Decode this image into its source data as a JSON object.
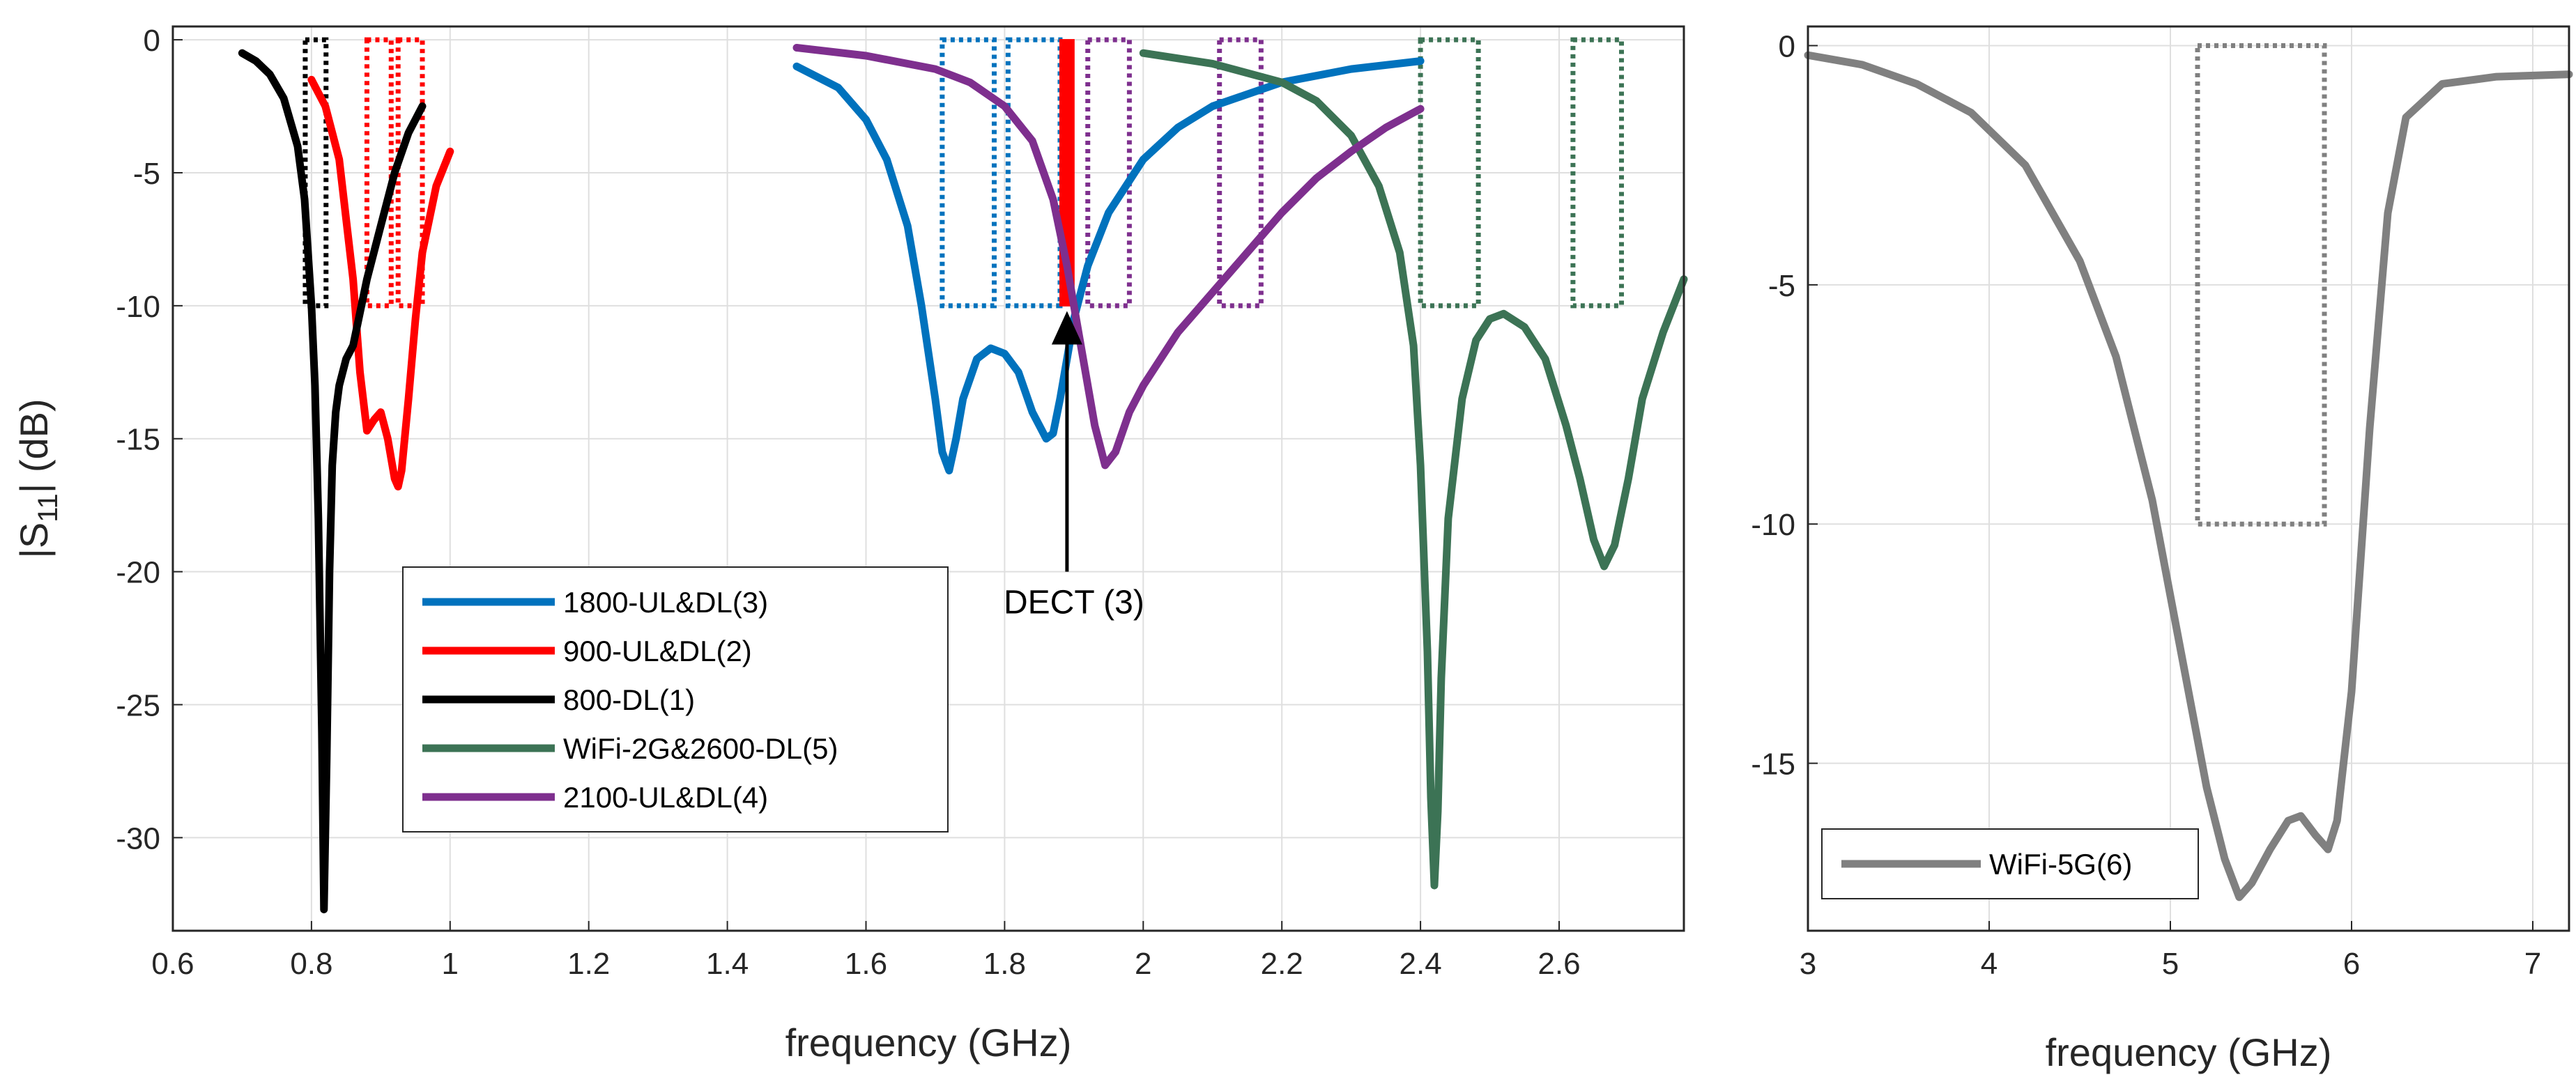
{
  "chart_data": [
    {
      "type": "line",
      "xlabel": "frequency (GHz)",
      "ylabel": "|S11| (dB)",
      "ylabel_main": "|S",
      "ylabel_sub": "11",
      "ylabel_tail": "| (dB)",
      "xlim": [
        0.6,
        2.78
      ],
      "ylim": [
        -33.5,
        0.5
      ],
      "xticks": [
        0.6,
        0.8,
        1,
        1.2,
        1.4,
        1.6,
        1.8,
        2,
        2.2,
        2.4,
        2.6
      ],
      "xtick_labels": [
        "0.6",
        "0.8",
        "1",
        "1.2",
        "1.4",
        "1.6",
        "1.8",
        "2",
        "2.2",
        "2.4",
        "2.6"
      ],
      "yticks": [
        0,
        -5,
        -10,
        -15,
        -20,
        -25,
        -30
      ],
      "ytick_labels": [
        "0",
        "-5",
        "-10",
        "-15",
        "-20",
        "-25",
        "-30"
      ],
      "grid": true,
      "legend_position": "lower-left",
      "series": [
        {
          "name": "1800-UL&DL(3)",
          "color": "#0072BD",
          "x": [
            1.5,
            1.56,
            1.6,
            1.63,
            1.66,
            1.68,
            1.7,
            1.71,
            1.72,
            1.73,
            1.74,
            1.76,
            1.78,
            1.8,
            1.82,
            1.84,
            1.86,
            1.87,
            1.88,
            1.89,
            1.9,
            1.92,
            1.95,
            2.0,
            2.05,
            2.1,
            2.2,
            2.3,
            2.4
          ],
          "y": [
            -1.0,
            -1.8,
            -3.0,
            -4.5,
            -7.0,
            -10.0,
            -13.5,
            -15.5,
            -16.2,
            -15.0,
            -13.5,
            -12.0,
            -11.6,
            -11.8,
            -12.5,
            -14.0,
            -15.0,
            -14.8,
            -13.5,
            -12.0,
            -10.5,
            -8.5,
            -6.5,
            -4.5,
            -3.3,
            -2.5,
            -1.6,
            -1.1,
            -0.8
          ]
        },
        {
          "name": "900-UL&DL(2)",
          "color": "#FF0000",
          "x": [
            0.8,
            0.82,
            0.84,
            0.86,
            0.87,
            0.88,
            0.89,
            0.9,
            0.91,
            0.92,
            0.925,
            0.93,
            0.94,
            0.95,
            0.96,
            0.98,
            1.0
          ],
          "y": [
            -1.5,
            -2.5,
            -4.5,
            -9.0,
            -12.5,
            -14.7,
            -14.3,
            -14.0,
            -15.0,
            -16.5,
            -16.8,
            -16.2,
            -13.5,
            -10.5,
            -8.0,
            -5.5,
            -4.2
          ]
        },
        {
          "name": "800-DL(1)",
          "color": "#000000",
          "x": [
            0.7,
            0.72,
            0.74,
            0.76,
            0.78,
            0.79,
            0.8,
            0.805,
            0.81,
            0.815,
            0.818,
            0.822,
            0.826,
            0.83,
            0.835,
            0.84,
            0.85,
            0.86,
            0.88,
            0.9,
            0.92,
            0.94,
            0.96
          ],
          "y": [
            -0.5,
            -0.8,
            -1.3,
            -2.2,
            -4.0,
            -6.0,
            -10.0,
            -13.0,
            -18.0,
            -26.0,
            -32.7,
            -27.0,
            -20.0,
            -16.0,
            -14.0,
            -13.0,
            -12.0,
            -11.5,
            -9.0,
            -7.0,
            -5.0,
            -3.5,
            -2.5
          ]
        },
        {
          "name": "WiFi-2G&2600-DL(5)",
          "color": "#3C7355",
          "x": [
            2.0,
            2.1,
            2.2,
            2.25,
            2.3,
            2.34,
            2.37,
            2.39,
            2.4,
            2.41,
            2.415,
            2.42,
            2.425,
            2.43,
            2.44,
            2.46,
            2.48,
            2.5,
            2.52,
            2.55,
            2.58,
            2.61,
            2.63,
            2.65,
            2.665,
            2.68,
            2.7,
            2.72,
            2.75,
            2.78
          ],
          "y": [
            -0.5,
            -0.9,
            -1.6,
            -2.3,
            -3.6,
            -5.5,
            -8.0,
            -11.5,
            -16.0,
            -23.0,
            -28.5,
            -31.8,
            -29.0,
            -24.0,
            -18.0,
            -13.5,
            -11.3,
            -10.5,
            -10.3,
            -10.8,
            -12.0,
            -14.5,
            -16.5,
            -18.8,
            -19.8,
            -19.0,
            -16.5,
            -13.5,
            -11.0,
            -9.0
          ]
        },
        {
          "name": "2100-UL&DL(4)",
          "color": "#7E2F8E",
          "x": [
            1.5,
            1.6,
            1.7,
            1.75,
            1.8,
            1.84,
            1.87,
            1.89,
            1.91,
            1.93,
            1.945,
            1.96,
            1.98,
            2.0,
            2.05,
            2.1,
            2.15,
            2.2,
            2.25,
            2.3,
            2.35,
            2.4
          ],
          "y": [
            -0.3,
            -0.6,
            -1.1,
            -1.6,
            -2.5,
            -3.8,
            -6.0,
            -8.5,
            -11.5,
            -14.5,
            -16.0,
            -15.5,
            -14.0,
            -13.0,
            -11.0,
            -9.5,
            -8.0,
            -6.5,
            -5.2,
            -4.2,
            -3.3,
            -2.6
          ]
        }
      ],
      "boxes": [
        {
          "x0": 0.791,
          "x1": 0.821,
          "y0": -10,
          "y1": 0,
          "color": "#000000"
        },
        {
          "x0": 0.88,
          "x1": 0.915,
          "y0": -10,
          "y1": 0,
          "color": "#FF0000"
        },
        {
          "x0": 0.925,
          "x1": 0.96,
          "y0": -10,
          "y1": 0,
          "color": "#FF0000"
        },
        {
          "x0": 1.71,
          "x1": 1.785,
          "y0": -10,
          "y1": 0,
          "color": "#0072BD"
        },
        {
          "x0": 1.805,
          "x1": 1.88,
          "y0": -10,
          "y1": 0,
          "color": "#0072BD"
        },
        {
          "x0": 1.92,
          "x1": 1.98,
          "y0": -10,
          "y1": 0,
          "color": "#7E2F8E"
        },
        {
          "x0": 2.11,
          "x1": 2.17,
          "y0": -10,
          "y1": 0,
          "color": "#7E2F8E"
        },
        {
          "x0": 2.4,
          "x1": 2.4835,
          "y0": -10,
          "y1": 0,
          "color": "#3C7355"
        },
        {
          "x0": 2.62,
          "x1": 2.69,
          "y0": -10,
          "y1": 0,
          "color": "#3C7355"
        }
      ],
      "dect_band": {
        "x0": 1.88,
        "x1": 1.9,
        "y0": -10,
        "y1": 0,
        "color": "#FF0000"
      },
      "annotation": {
        "text": "DECT (3)",
        "arrow_x": 1.89,
        "arrow_y_tip": -10.2,
        "arrow_y_tail": -20.0
      }
    },
    {
      "type": "line",
      "xlabel": "frequency (GHz)",
      "ylabel": "",
      "xlim": [
        3,
        7.2
      ],
      "ylim": [
        -18.5,
        0.4
      ],
      "xticks": [
        3,
        4,
        5,
        6,
        7
      ],
      "xtick_labels": [
        "3",
        "4",
        "5",
        "6",
        "7"
      ],
      "yticks": [
        0,
        -5,
        -10,
        -15
      ],
      "ytick_labels": [
        "0",
        "-5",
        "-10",
        "-15"
      ],
      "grid": true,
      "legend_position": "lower-left",
      "series": [
        {
          "name": "WiFi-5G(6)",
          "color": "#808080",
          "x": [
            3.0,
            3.3,
            3.6,
            3.9,
            4.2,
            4.5,
            4.7,
            4.9,
            5.0,
            5.1,
            5.2,
            5.3,
            5.38,
            5.45,
            5.55,
            5.65,
            5.72,
            5.8,
            5.87,
            5.92,
            6.0,
            6.1,
            6.2,
            6.3,
            6.5,
            6.8,
            7.2
          ],
          "y": [
            -0.2,
            -0.4,
            -0.8,
            -1.4,
            -2.5,
            -4.5,
            -6.5,
            -9.5,
            -11.5,
            -13.5,
            -15.5,
            -17.0,
            -17.8,
            -17.5,
            -16.8,
            -16.2,
            -16.1,
            -16.5,
            -16.8,
            -16.2,
            -13.5,
            -8.0,
            -3.5,
            -1.5,
            -0.8,
            -0.65,
            -0.6
          ]
        }
      ],
      "boxes": [
        {
          "x0": 5.15,
          "x1": 5.85,
          "y0": -10,
          "y1": 0,
          "color": "#808080"
        }
      ]
    }
  ]
}
